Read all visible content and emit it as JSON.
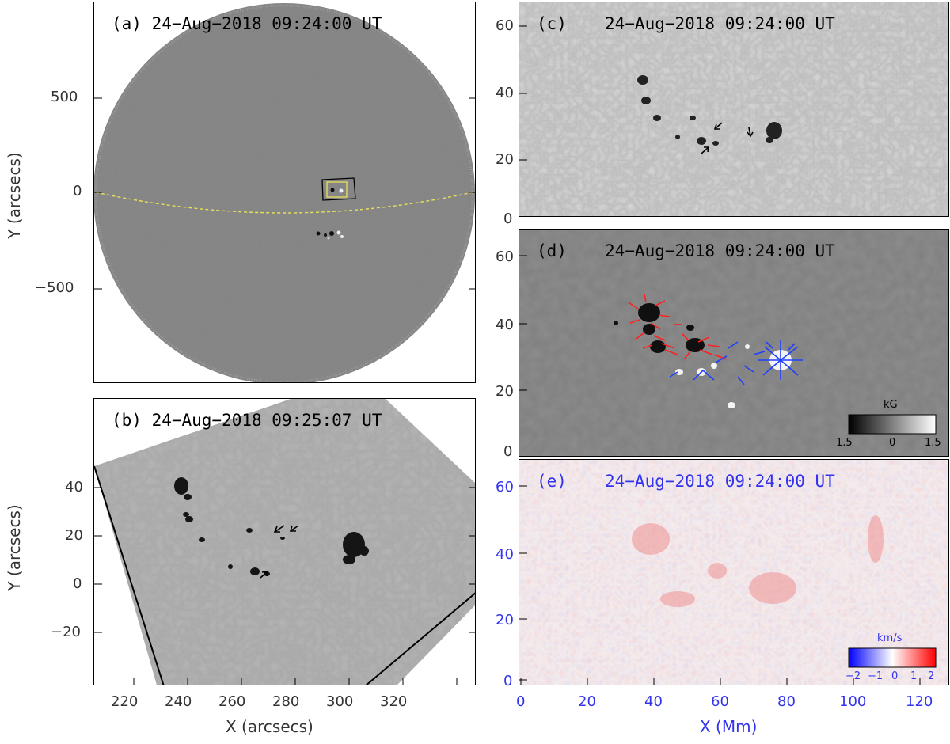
{
  "panel_a": {
    "title": "(a) 24−Aug−2018 09:24:00 UT",
    "y_ticks": [
      "500",
      "0",
      "−500"
    ],
    "y_label": "Y (arcsecs)"
  },
  "panel_b": {
    "title": "(b) 24−Aug−2018 09:25:07 UT",
    "y_ticks": [
      "40",
      "20",
      "0",
      "−20"
    ],
    "x_ticks": [
      "220",
      "240",
      "260",
      "280",
      "300",
      "320"
    ],
    "x_label": "X (arcsecs)",
    "y_label": "Y (arcsecs)"
  },
  "panel_c": {
    "label": "(c)",
    "time": "24−Aug−2018 09:24:00 UT",
    "y_ticks": [
      "60",
      "40",
      "20",
      "0"
    ]
  },
  "panel_d": {
    "label": "(d)",
    "time": "24−Aug−2018 09:24:00 UT",
    "y_ticks": [
      "60",
      "40",
      "20",
      "0"
    ],
    "colorbar": {
      "unit": "kG",
      "ticks": [
        "1.5",
        "0",
        "1.5"
      ]
    }
  },
  "panel_e": {
    "label": "(e)",
    "time": "24−Aug−2018 09:24:00 UT",
    "y_ticks": [
      "60",
      "40",
      "20",
      "0"
    ],
    "x_ticks": [
      "0",
      "20",
      "40",
      "60",
      "80",
      "100",
      "120"
    ],
    "x_label": "X (Mm)",
    "colorbar": {
      "unit": "km/s",
      "ticks": [
        "−2",
        "−1",
        "0",
        "1",
        "2"
      ]
    }
  },
  "colors": {
    "disk_gray": "#7b7b7b",
    "equator_line": "#e8e05a",
    "box_inner": "#e8e05a",
    "blue_text": "#3333ee",
    "vector_red": "#ff2020",
    "vector_blue": "#2040ff"
  }
}
